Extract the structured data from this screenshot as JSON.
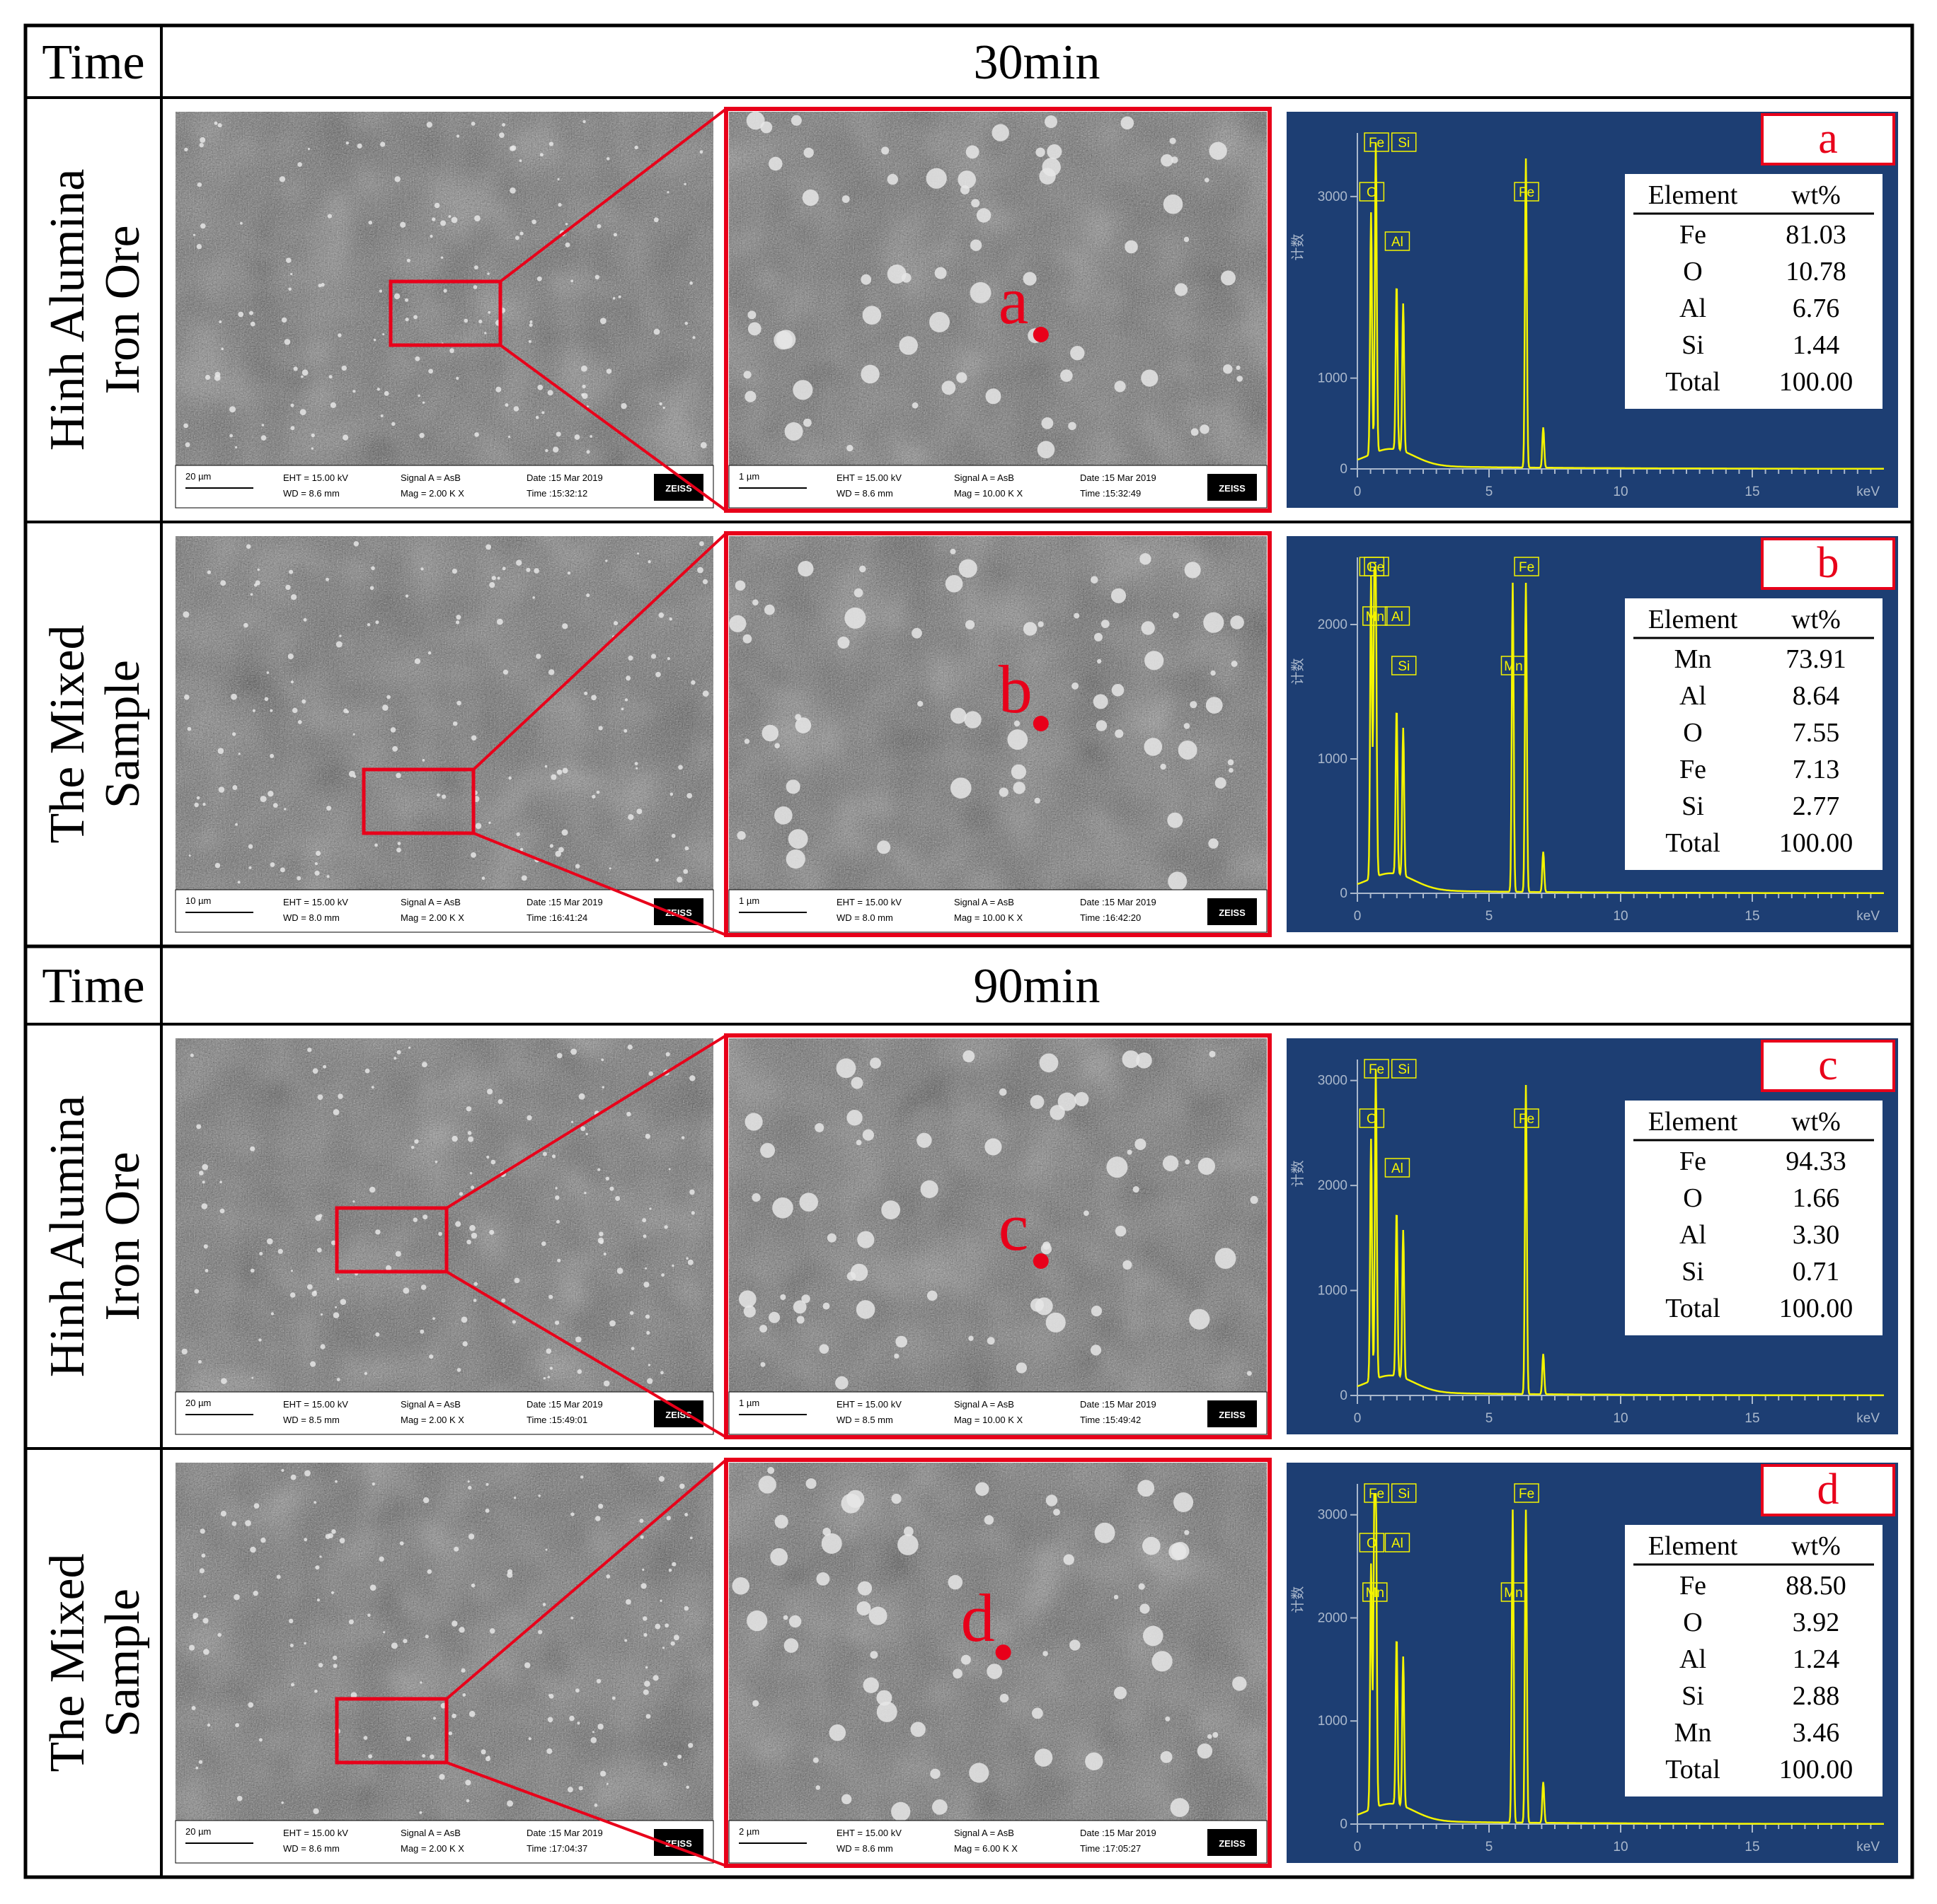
{
  "header_label": "Time",
  "sections": [
    {
      "time": "30min",
      "rows": [
        {
          "sample_lines": [
            "Hinh Alumina",
            "Iron Ore"
          ],
          "spot_label": "a",
          "sem_low": {
            "scale": "20 µm",
            "eht": "EHT = 15.00 kV",
            "wd": "WD = 8.6 mm",
            "signal": "Signal A = AsB",
            "mag": "Mag =   2.00 K X",
            "date": "Date :15 Mar 2019",
            "time": "Time :15:32:12",
            "brand": "ZEISS"
          },
          "sem_high": {
            "scale": "1 µm",
            "eht": "EHT = 15.00 kV",
            "wd": "WD = 8.6 mm",
            "signal": "Signal A = AsB",
            "mag": "Mag =  10.00 K X",
            "date": "Date :15 Mar 2019",
            "time": "Time :15:32:49",
            "brand": "ZEISS"
          },
          "eds": {
            "tag": "a",
            "y_unit": "计数",
            "x_unit": "keV",
            "y_ticks": [
              "0",
              "1000",
              "3000"
            ],
            "x_ticks": [
              "0",
              "5",
              "10",
              "15"
            ],
            "ymax": 3700,
            "peaks": [
              {
                "el": "Fe",
                "kev": 0.7
              },
              {
                "el": "O",
                "kev": 0.52
              },
              {
                "el": "Al",
                "kev": 1.49
              },
              {
                "el": "Si",
                "kev": 1.74
              },
              {
                "el": "Fe",
                "kev": 6.4
              }
            ],
            "table": {
              "head": [
                "Element",
                "wt%"
              ],
              "rows": [
                [
                  "Fe",
                  "81.03"
                ],
                [
                  "O",
                  "10.78"
                ],
                [
                  "Al",
                  "6.76"
                ],
                [
                  "Si",
                  "1.44"
                ],
                [
                  "Total",
                  "100.00"
                ]
              ]
            }
          }
        },
        {
          "sample_lines": [
            "The Mixed",
            "Sample"
          ],
          "spot_label": "b",
          "sem_low": {
            "scale": "10 µm",
            "eht": "EHT = 15.00 kV",
            "wd": "WD = 8.0 mm",
            "signal": "Signal A = AsB",
            "mag": "Mag =   2.00 K X",
            "date": "Date :15 Mar 2019",
            "time": "Time :16:41:24",
            "brand": "ZEISS"
          },
          "sem_high": {
            "scale": "1 µm",
            "eht": "EHT = 15.00 kV",
            "wd": "WD = 8.0 mm",
            "signal": "Signal A = AsB",
            "mag": "Mag =  10.00 K X",
            "date": "Date :15 Mar 2019",
            "time": "Time :16:42:20",
            "brand": "ZEISS"
          },
          "eds": {
            "tag": "b",
            "y_unit": "计数",
            "x_unit": "keV",
            "y_ticks": [
              "0",
              "1000",
              "2000"
            ],
            "x_ticks": [
              "0",
              "5",
              "10",
              "15"
            ],
            "ymax": 2500,
            "peaks": [
              {
                "el": "O",
                "kev": 0.52
              },
              {
                "el": "Al",
                "kev": 1.49
              },
              {
                "el": "Si",
                "kev": 1.74
              },
              {
                "el": "Fe",
                "kev": 0.7
              },
              {
                "el": "Mn",
                "kev": 0.64
              },
              {
                "el": "Mn",
                "kev": 5.9
              },
              {
                "el": "Fe",
                "kev": 6.4
              }
            ],
            "table": {
              "head": [
                "Element",
                "wt%"
              ],
              "rows": [
                [
                  "Mn",
                  "73.91"
                ],
                [
                  "Al",
                  "8.64"
                ],
                [
                  "O",
                  "7.55"
                ],
                [
                  "Fe",
                  "7.13"
                ],
                [
                  "Si",
                  "2.77"
                ],
                [
                  "Total",
                  "100.00"
                ]
              ]
            }
          }
        }
      ]
    },
    {
      "time": "90min",
      "rows": [
        {
          "sample_lines": [
            "Hinh Alumina",
            "Iron Ore"
          ],
          "spot_label": "c",
          "sem_low": {
            "scale": "20 µm",
            "eht": "EHT = 15.00 kV",
            "wd": "WD = 8.5 mm",
            "signal": "Signal A = AsB",
            "mag": "Mag =   2.00 K X",
            "date": "Date :15 Mar 2019",
            "time": "Time :15:49:01",
            "brand": "ZEISS"
          },
          "sem_high": {
            "scale": "1 µm",
            "eht": "EHT = 15.00 kV",
            "wd": "WD = 8.5 mm",
            "signal": "Signal A = AsB",
            "mag": "Mag =  10.00 K X",
            "date": "Date :15 Mar 2019",
            "time": "Time :15:49:42",
            "brand": "ZEISS"
          },
          "eds": {
            "tag": "c",
            "y_unit": "计数",
            "x_unit": "keV",
            "y_ticks": [
              "0",
              "1000",
              "2000",
              "3000"
            ],
            "x_ticks": [
              "0",
              "5",
              "10",
              "15"
            ],
            "ymax": 3200,
            "peaks": [
              {
                "el": "Fe",
                "kev": 0.7
              },
              {
                "el": "O",
                "kev": 0.52
              },
              {
                "el": "Al",
                "kev": 1.49
              },
              {
                "el": "Si",
                "kev": 1.74
              },
              {
                "el": "Fe",
                "kev": 6.4
              }
            ],
            "table": {
              "head": [
                "Element",
                "wt%"
              ],
              "rows": [
                [
                  "Fe",
                  "94.33"
                ],
                [
                  "O",
                  "1.66"
                ],
                [
                  "Al",
                  "3.30"
                ],
                [
                  "Si",
                  "0.71"
                ],
                [
                  "Total",
                  "100.00"
                ]
              ]
            }
          }
        },
        {
          "sample_lines": [
            "The Mixed",
            "Sample"
          ],
          "spot_label": "d",
          "sem_low": {
            "scale": "20 µm",
            "eht": "EHT = 15.00 kV",
            "wd": "WD = 8.6 mm",
            "signal": "Signal A = AsB",
            "mag": "Mag =   2.00 K X",
            "date": "Date :15 Mar 2019",
            "time": "Time :17:04:37",
            "brand": "ZEISS"
          },
          "sem_high": {
            "scale": "2 µm",
            "eht": "EHT = 15.00 kV",
            "wd": "WD = 8.6 mm",
            "signal": "Signal A = AsB",
            "mag": "Mag =   6.00 K X",
            "date": "Date :15 Mar 2019",
            "time": "Time :17:05:27",
            "brand": "ZEISS"
          },
          "eds": {
            "tag": "d",
            "y_unit": "计数",
            "x_unit": "keV",
            "y_ticks": [
              "0",
              "1000",
              "2000",
              "3000"
            ],
            "x_ticks": [
              "0",
              "5",
              "10",
              "15"
            ],
            "ymax": 3300,
            "peaks": [
              {
                "el": "Fe",
                "kev": 0.7
              },
              {
                "el": "O",
                "kev": 0.52
              },
              {
                "el": "Mn",
                "kev": 0.64
              },
              {
                "el": "Si",
                "kev": 1.74
              },
              {
                "el": "Al",
                "kev": 1.49
              },
              {
                "el": "Mn",
                "kev": 5.9
              },
              {
                "el": "Fe",
                "kev": 6.4
              }
            ],
            "table": {
              "head": [
                "Element",
                "wt%"
              ],
              "rows": [
                [
                  "Fe",
                  "88.50"
                ],
                [
                  "O",
                  "3.92"
                ],
                [
                  "Al",
                  "1.24"
                ],
                [
                  "Si",
                  "2.88"
                ],
                [
                  "Mn",
                  "3.46"
                ],
                [
                  "Total",
                  "100.00"
                ]
              ]
            }
          }
        }
      ]
    }
  ],
  "colors": {
    "frame": "#000000",
    "highlight": "#e8001a",
    "eds_bg": "#1d3e73",
    "spectrum": "#f4f400",
    "sem_tone": "#6e6e6e"
  }
}
